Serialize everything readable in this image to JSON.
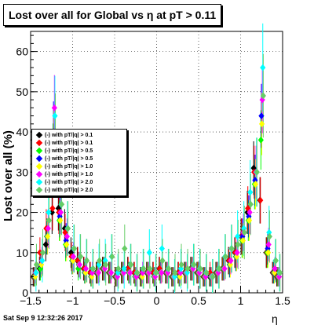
{
  "title": "Lost over all for Global vs   η at pT > 0.11",
  "timestamp": "Sat Sep  9 12:32:26 2017",
  "chart_data": {
    "type": "scatter",
    "title": "Lost over all for Global vs   η at pT > 0.11",
    "xlabel": "η",
    "ylabel": "Lost over all (%)",
    "xlim": [
      -1.5,
      1.5
    ],
    "ylim": [
      0,
      65
    ],
    "x_ticks": [
      -1.5,
      -1,
      -0.5,
      0,
      0.5,
      1,
      1.5
    ],
    "x_tick_labels": [
      "−1.5",
      "−1",
      "−0.5",
      "0",
      "0.5",
      "1",
      "1.5"
    ],
    "y_ticks": [
      0,
      10,
      20,
      30,
      40,
      50,
      60
    ],
    "y_tick_labels": [
      "0",
      "10",
      "20",
      "30",
      "40",
      "50",
      "60"
    ],
    "grid": true,
    "legend_placement": "middle-left",
    "eta": [
      -1.45,
      -1.375,
      -1.3,
      -1.225,
      -1.15,
      -1.075,
      -1.0,
      -0.925,
      -0.85,
      -0.775,
      -0.7,
      -0.625,
      -0.55,
      -0.475,
      -0.4,
      -0.325,
      -0.25,
      -0.175,
      -0.1,
      -0.025,
      0.05,
      0.125,
      0.2,
      0.275,
      0.35,
      0.425,
      0.5,
      0.575,
      0.65,
      0.725,
      0.8,
      0.875,
      0.95,
      1.025,
      1.1,
      1.175,
      1.25,
      1.325,
      1.4,
      1.45
    ],
    "series": [
      {
        "name": "(-) with pT/|q| > 0.1",
        "color": "#000000",
        "values": [
          4,
          6,
          12,
          20,
          21,
          16,
          10,
          8,
          6,
          5,
          5,
          6,
          5,
          4,
          5,
          6,
          5,
          4,
          5,
          5,
          6,
          5,
          4,
          5,
          5,
          6,
          5,
          4,
          4,
          5,
          6,
          8,
          10,
          14,
          20,
          31,
          23,
          10,
          5,
          4
        ]
      },
      {
        "name": "(-) with pT/|q| > 0.1",
        "color": "#ff0000",
        "values": [
          4,
          10,
          16,
          21,
          20,
          15,
          9,
          8,
          6,
          5,
          5,
          6,
          5,
          4,
          5,
          6,
          5,
          4,
          5,
          5,
          6,
          5,
          4,
          5,
          5,
          6,
          5,
          4,
          5,
          5,
          6,
          8,
          10,
          14,
          21,
          30,
          23,
          10,
          5,
          4
        ]
      },
      {
        "name": "(-) with pT/|q| > 0.5",
        "color": "#00ff00",
        "values": [
          4,
          6,
          14,
          35,
          18,
          12,
          8,
          6,
          5,
          4,
          5,
          6,
          5,
          4,
          5,
          5,
          4,
          4,
          5,
          4,
          5,
          5,
          4,
          4,
          5,
          6,
          5,
          4,
          4,
          5,
          6,
          7,
          9,
          13,
          18,
          27,
          38,
          10,
          5,
          4
        ]
      },
      {
        "name": "(-) with pT/|q| > 0.5",
        "color": "#0000ff",
        "values": [
          4,
          7,
          14,
          40,
          19,
          13,
          8,
          7,
          5,
          4,
          5,
          6,
          5,
          4,
          5,
          5,
          4,
          4,
          5,
          4,
          5,
          5,
          4,
          4,
          5,
          6,
          5,
          4,
          4,
          5,
          6,
          7,
          9,
          14,
          19,
          28,
          44,
          11,
          5,
          4
        ]
      },
      {
        "name": "(-) with pT/|q| > 1.0",
        "color": "#ffff00",
        "values": [
          4,
          7,
          14,
          38,
          18,
          12,
          8,
          7,
          5,
          4,
          5,
          6,
          5,
          4,
          5,
          5,
          4,
          4,
          5,
          4,
          5,
          5,
          4,
          4,
          5,
          6,
          5,
          4,
          4,
          5,
          6,
          7,
          9,
          13,
          18,
          27,
          42,
          10,
          5,
          4
        ]
      },
      {
        "name": "(-) with pT/|q| > 1.0",
        "color": "#ff00ff",
        "values": [
          5,
          8,
          16,
          46,
          20,
          14,
          9,
          7,
          6,
          5,
          5,
          6,
          5,
          4,
          5,
          5,
          4,
          5,
          5,
          4,
          5,
          5,
          4,
          5,
          5,
          6,
          5,
          4,
          4,
          5,
          6,
          8,
          10,
          15,
          20,
          30,
          48,
          12,
          6,
          4
        ]
      },
      {
        "name": "(-) with pT/|q| > 2.0",
        "color": "#00ffff",
        "values": [
          5,
          8,
          20,
          44,
          22,
          16,
          11,
          9,
          8,
          6,
          7,
          8,
          9,
          5,
          6,
          7,
          5,
          6,
          10,
          5,
          11,
          6,
          4,
          6,
          5,
          7,
          6,
          5,
          4,
          6,
          9,
          11,
          14,
          16,
          25,
          30,
          56,
          15,
          8,
          5
        ]
      },
      {
        "name": "(-) with pT/|q| > 2.0",
        "color": "#66cc66",
        "values": [
          7,
          10,
          18,
          40,
          22,
          16,
          11,
          9,
          8,
          6,
          8,
          7,
          9,
          6,
          11,
          7,
          5,
          6,
          6,
          5,
          8,
          6,
          5,
          7,
          6,
          7,
          6,
          5,
          4,
          6,
          9,
          11,
          12,
          15,
          22,
          30,
          49,
          14,
          8,
          5
        ]
      }
    ]
  }
}
